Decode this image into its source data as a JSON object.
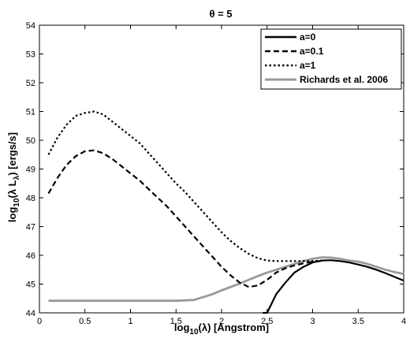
{
  "chart_data": {
    "type": "line",
    "title": "θ = 5",
    "xlabel": {
      "pre": "log",
      "sub": "10",
      "post": "(λ) [Angstrom]"
    },
    "ylabel": {
      "pre": "log",
      "sub": "10",
      "mid": "(λ L",
      "sub2": "λ",
      "post": ") [ergs/s]"
    },
    "xlim": [
      0,
      4
    ],
    "ylim": [
      44,
      54
    ],
    "xticks": [
      0,
      0.5,
      1,
      1.5,
      2,
      2.5,
      3,
      3.5,
      4
    ],
    "xtick_labels": [
      "0",
      "0.5",
      "1",
      "1.5",
      "2",
      "2.5",
      "3",
      "3.5",
      "4"
    ],
    "yticks": [
      44,
      45,
      46,
      47,
      48,
      49,
      50,
      51,
      52,
      53,
      54
    ],
    "ytick_labels": [
      "44",
      "45",
      "46",
      "47",
      "48",
      "49",
      "50",
      "51",
      "52",
      "53",
      "54"
    ],
    "grid": false,
    "legend_position": "top-right",
    "series": [
      {
        "name": "a=0",
        "color": "#000000",
        "dash": "solid",
        "x": [
          2.45,
          2.5,
          2.6,
          2.7,
          2.8,
          2.9,
          3.0,
          3.1,
          3.2,
          3.3,
          3.4,
          3.5,
          3.6,
          3.7,
          3.8,
          3.9,
          4.0
        ],
        "y": [
          44.0,
          44.0,
          44.65,
          45.05,
          45.4,
          45.6,
          45.75,
          45.82,
          45.83,
          45.8,
          45.75,
          45.68,
          45.6,
          45.5,
          45.38,
          45.25,
          45.12
        ]
      },
      {
        "name": "a=0.1",
        "color": "#000000",
        "dash": "dash",
        "x": [
          0.1,
          0.2,
          0.3,
          0.4,
          0.5,
          0.6,
          0.7,
          0.8,
          0.9,
          1.0,
          1.1,
          1.2,
          1.3,
          1.4,
          1.5,
          1.6,
          1.7,
          1.8,
          1.9,
          2.0,
          2.1,
          2.2,
          2.3,
          2.4,
          2.5,
          2.6,
          2.7,
          2.8,
          2.9,
          3.0,
          3.1
        ],
        "y": [
          48.15,
          48.7,
          49.15,
          49.45,
          49.62,
          49.65,
          49.55,
          49.35,
          49.1,
          48.85,
          48.6,
          48.3,
          48.0,
          47.7,
          47.35,
          47.0,
          46.65,
          46.3,
          45.95,
          45.6,
          45.3,
          45.05,
          44.9,
          44.95,
          45.15,
          45.4,
          45.55,
          45.65,
          45.72,
          45.78,
          45.8
        ]
      },
      {
        "name": "a=1",
        "color": "#000000",
        "dash": "dot",
        "x": [
          0.1,
          0.2,
          0.3,
          0.4,
          0.5,
          0.6,
          0.7,
          0.8,
          0.9,
          1.0,
          1.1,
          1.2,
          1.3,
          1.4,
          1.5,
          1.6,
          1.7,
          1.8,
          1.9,
          2.0,
          2.1,
          2.2,
          2.3,
          2.4,
          2.5,
          2.6,
          2.7,
          2.8,
          2.9,
          3.0,
          3.1
        ],
        "y": [
          49.5,
          50.1,
          50.55,
          50.85,
          50.95,
          51.0,
          50.9,
          50.65,
          50.4,
          50.15,
          49.9,
          49.55,
          49.2,
          48.85,
          48.5,
          48.2,
          47.85,
          47.5,
          47.15,
          46.8,
          46.5,
          46.25,
          46.05,
          45.9,
          45.82,
          45.8,
          45.8,
          45.8,
          45.8,
          45.8,
          45.82
        ]
      },
      {
        "name": "Richards et al. 2006",
        "color": "#999999",
        "dash": "solid",
        "x": [
          0.1,
          0.5,
          1.0,
          1.5,
          1.7,
          1.8,
          1.9,
          2.0,
          2.1,
          2.2,
          2.3,
          2.4,
          2.5,
          2.6,
          2.7,
          2.8,
          2.9,
          3.0,
          3.1,
          3.2,
          3.3,
          3.4,
          3.5,
          3.6,
          3.7,
          3.8,
          3.9,
          4.0
        ],
        "y": [
          44.42,
          44.42,
          44.42,
          44.42,
          44.45,
          44.55,
          44.65,
          44.78,
          44.9,
          45.02,
          45.15,
          45.28,
          45.4,
          45.5,
          45.6,
          45.7,
          45.8,
          45.88,
          45.93,
          45.92,
          45.88,
          45.82,
          45.78,
          45.7,
          45.6,
          45.5,
          45.42,
          45.35
        ]
      }
    ]
  }
}
